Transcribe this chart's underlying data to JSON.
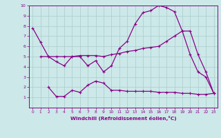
{
  "xlabel": "Windchill (Refroidissement éolien,°C)",
  "background_color": "#cce8e8",
  "grid_color": "#aacccc",
  "line_color": "#880088",
  "xlim": [
    -0.5,
    23.5
  ],
  "ylim": [
    0,
    10
  ],
  "xticks": [
    0,
    1,
    2,
    3,
    4,
    5,
    6,
    7,
    8,
    9,
    10,
    11,
    12,
    13,
    14,
    15,
    16,
    17,
    18,
    19,
    20,
    21,
    22,
    23
  ],
  "yticks": [
    1,
    2,
    3,
    4,
    5,
    6,
    7,
    8,
    9,
    10
  ],
  "line1_x": [
    0,
    1,
    2,
    3,
    4,
    5,
    6,
    7,
    8,
    9,
    10,
    11,
    12,
    13,
    14,
    15,
    16,
    17,
    18,
    19,
    20,
    21,
    22,
    23
  ],
  "line1_y": [
    7.8,
    6.4,
    5.0,
    4.5,
    4.1,
    5.0,
    5.0,
    4.1,
    4.6,
    3.5,
    4.1,
    5.8,
    6.5,
    8.2,
    9.3,
    9.5,
    10.0,
    9.8,
    9.4,
    7.5,
    5.2,
    3.5,
    3.0,
    1.4
  ],
  "line2_x": [
    1,
    2,
    3,
    4,
    5,
    6,
    7,
    8,
    9,
    10,
    11,
    12,
    13,
    14,
    15,
    16,
    17,
    18,
    19,
    20,
    21,
    22,
    23
  ],
  "line2_y": [
    5.0,
    5.0,
    5.0,
    5.0,
    5.0,
    5.1,
    5.1,
    5.1,
    5.0,
    5.2,
    5.3,
    5.5,
    5.6,
    5.8,
    5.9,
    6.0,
    6.5,
    7.0,
    7.5,
    7.5,
    5.2,
    3.5,
    1.4
  ],
  "line3_x": [
    2,
    3,
    4,
    5,
    6,
    7,
    8,
    9,
    10,
    11,
    12,
    13,
    14,
    15,
    16,
    17,
    18,
    19,
    20,
    21,
    22,
    23
  ],
  "line3_y": [
    2.0,
    1.1,
    1.1,
    1.7,
    1.5,
    2.2,
    2.6,
    2.4,
    1.7,
    1.7,
    1.6,
    1.6,
    1.6,
    1.6,
    1.5,
    1.5,
    1.5,
    1.4,
    1.4,
    1.3,
    1.3,
    1.4
  ]
}
